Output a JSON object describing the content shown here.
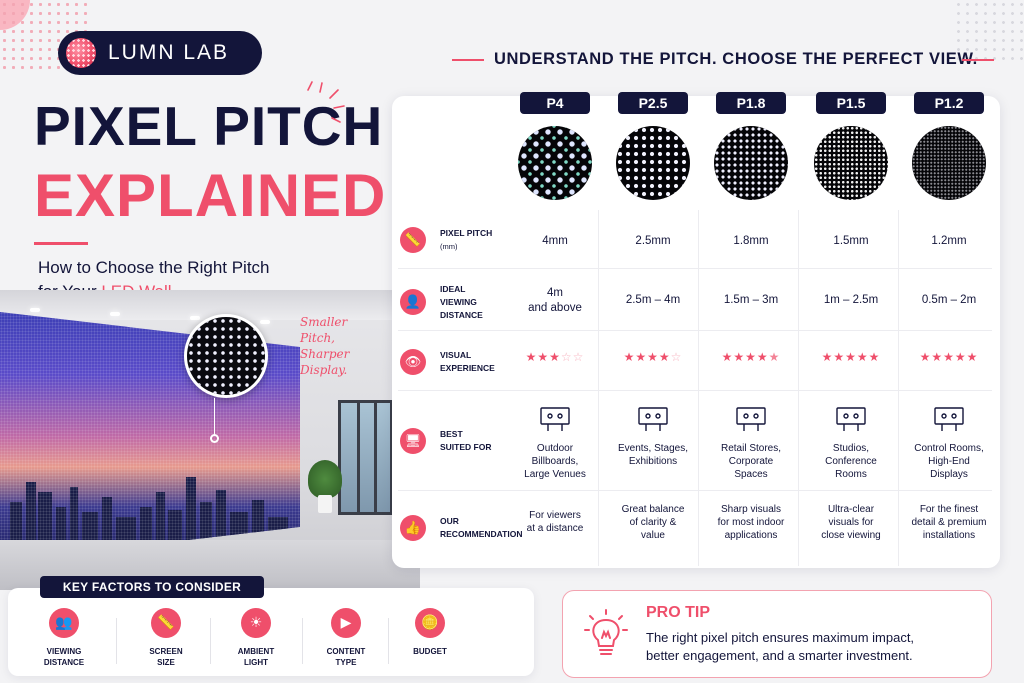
{
  "brand": {
    "name": "LUMN LAB"
  },
  "hero": {
    "title_line1": "PIXEL PITCH",
    "title_line2": "EXPLAINED",
    "subtitle_line1": "How to Choose the Right Pitch",
    "subtitle_line2_prefix": "for Your ",
    "subtitle_line2_accent": "LED Wall"
  },
  "annotation": {
    "line1": "Smaller",
    "line2": "Pitch,",
    "line3": "Sharper",
    "line4": "Display."
  },
  "comparison": {
    "heading": "UNDERSTAND THE PITCH. CHOOSE THE PERFECT VIEW.",
    "columns": [
      {
        "label": "P4",
        "pitch": "4mm",
        "distance_l1": "4m",
        "distance_l2": "and above",
        "stars": 3,
        "half": false,
        "best_l1": "Outdoor",
        "best_l2": "Billboards,",
        "best_l3": "Large Venues",
        "best_icon": "billboard-icon",
        "rec_l1": "For viewers",
        "rec_l2": "at a distance",
        "rec_l3": ""
      },
      {
        "label": "P2.5",
        "pitch": "2.5mm",
        "distance_l1": "2.5m – 4m",
        "distance_l2": "",
        "stars": 4,
        "half": false,
        "best_l1": "Events, Stages,",
        "best_l2": "Exhibitions",
        "best_l3": "",
        "best_icon": "audience-icon",
        "rec_l1": "Great balance",
        "rec_l2": "of clarity &",
        "rec_l3": "value"
      },
      {
        "label": "P1.8",
        "pitch": "1.8mm",
        "distance_l1": "1.5m – 3m",
        "distance_l2": "",
        "stars": 4,
        "half": true,
        "best_l1": "Retail Stores,",
        "best_l2": "Corporate",
        "best_l3": "Spaces",
        "best_icon": "storefront-icon",
        "rec_l1": "Sharp visuals",
        "rec_l2": "for most indoor",
        "rec_l3": "applications"
      },
      {
        "label": "P1.5",
        "pitch": "1.5mm",
        "distance_l1": "1m – 2.5m",
        "distance_l2": "",
        "stars": 5,
        "half": false,
        "best_l1": "Studios,",
        "best_l2": "Conference",
        "best_l3": "Rooms",
        "best_icon": "conference-icon",
        "rec_l1": "Ultra-clear",
        "rec_l2": "visuals for",
        "rec_l3": "close viewing"
      },
      {
        "label": "P1.2",
        "pitch": "1.2mm",
        "distance_l1": "0.5m – 2m",
        "distance_l2": "",
        "stars": 5,
        "half": false,
        "best_l1": "Control Rooms,",
        "best_l2": "High-End",
        "best_l3": "Displays",
        "best_icon": "control-room-icon",
        "rec_l1": "For the finest",
        "rec_l2": "detail & premium",
        "rec_l3": "installations"
      }
    ],
    "rows": [
      {
        "label_l1": "PIXEL PITCH",
        "label_l2": "(mm)",
        "icon": "ruler-icon"
      },
      {
        "label_l1": "IDEAL VIEWING",
        "label_l2": "DISTANCE",
        "icon": "person-pin-icon"
      },
      {
        "label_l1": "VISUAL",
        "label_l2": "EXPERIENCE",
        "icon": "eye-icon"
      },
      {
        "label_l1": "BEST",
        "label_l2": "SUITED FOR",
        "icon": "monitor-icon"
      },
      {
        "label_l1": "OUR",
        "label_l2": "RECOMMENDATION",
        "icon": "thumbs-up-icon"
      }
    ]
  },
  "key_factors": {
    "heading": "KEY FACTORS TO CONSIDER",
    "items": [
      {
        "l1": "VIEWING",
        "l2": "DISTANCE",
        "icon": "people-icon"
      },
      {
        "l1": "SCREEN",
        "l2": "SIZE",
        "icon": "ruler-icon"
      },
      {
        "l1": "AMBIENT",
        "l2": "LIGHT",
        "icon": "sun-icon"
      },
      {
        "l1": "CONTENT",
        "l2": "TYPE",
        "icon": "video-icon"
      },
      {
        "l1": "BUDGET",
        "l2": "",
        "icon": "coins-icon"
      }
    ]
  },
  "pro_tip": {
    "title": "PRO TIP",
    "text_l1": "The right pixel pitch ensures maximum impact,",
    "text_l2": "better engagement, and a smarter investment."
  },
  "colors": {
    "navy": "#13153a",
    "accent": "#ef4f6b"
  }
}
